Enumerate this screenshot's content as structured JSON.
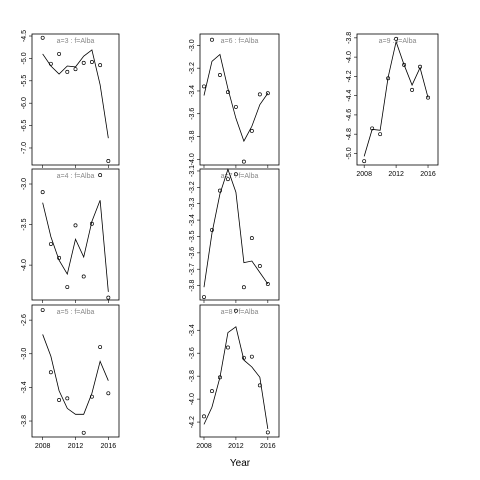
{
  "chart_data": [
    {
      "type": "scatter",
      "title": "a=3 : f=Alba",
      "x": [
        2008,
        2009,
        2010,
        2011,
        2012,
        2013,
        2014,
        2015,
        2016
      ],
      "series": [
        {
          "mode": "markers",
          "color": "#000000",
          "values": [
            -4.54,
            -5.12,
            -4.9,
            -5.3,
            -5.24,
            -5.1,
            -5.08,
            -5.15,
            -7.29
          ]
        },
        {
          "mode": "line",
          "color": "#000000",
          "values": [
            -4.9,
            -5.17,
            -5.35,
            -5.17,
            -5.19,
            -4.95,
            -4.81,
            -5.59,
            -6.78
          ]
        }
      ],
      "xlim": [
        2006.7,
        2017.3
      ],
      "xticks": [
        2008,
        2012,
        2016
      ],
      "x_tick_labels": false,
      "ylim": [
        -7.38,
        -4.455
      ],
      "yticks": [
        -4.5,
        {
          "value": -5,
          "label": "-5.0"
        },
        -5.5,
        {
          "value": -6,
          "label": "-6.0"
        },
        -6.5,
        {
          "value": -7,
          "label": "-7.0"
        }
      ]
    },
    {
      "type": "scatter",
      "title": "a=4 : f=Alba",
      "x": [
        2008,
        2009,
        2010,
        2011,
        2012,
        2013,
        2014,
        2015,
        2016
      ],
      "series": [
        {
          "mode": "markers",
          "color": "#000000",
          "values": [
            -3.1,
            -3.74,
            -3.91,
            -4.27,
            -3.51,
            -4.14,
            -3.49,
            -2.89,
            -4.4
          ]
        },
        {
          "mode": "line",
          "color": "#000000",
          "values": [
            -3.23,
            -3.65,
            -3.94,
            -4.11,
            -3.68,
            -3.9,
            -3.46,
            -3.2,
            -4.33
          ]
        }
      ],
      "xlim": [
        2006.7,
        2017.3
      ],
      "xticks": [
        2008,
        2012,
        2016
      ],
      "x_tick_labels": false,
      "ylim": [
        -4.43,
        -2.815
      ],
      "yticks": [
        {
          "value": -3,
          "label": "-3.0"
        },
        -3.5,
        {
          "value": -4,
          "label": "-4.0"
        }
      ]
    },
    {
      "type": "scatter",
      "title": "a=5 : f=Alba",
      "x": [
        2008,
        2009,
        2010,
        2011,
        2012,
        2013,
        2014,
        2015,
        2016
      ],
      "series": [
        {
          "mode": "markers",
          "color": "#000000",
          "values": [
            -2.48,
            -3.22,
            -3.55,
            -3.53,
            null,
            -3.94,
            -3.51,
            -2.92,
            -3.47
          ]
        },
        {
          "mode": "line",
          "color": "#000000",
          "values": [
            -2.77,
            -3.03,
            -3.44,
            -3.65,
            -3.72,
            -3.72,
            -3.47,
            -3.09,
            -3.32
          ]
        }
      ],
      "xlim": [
        2006.7,
        2017.3
      ],
      "xticks": [
        2008,
        2012,
        2016
      ],
      "x_tick_labels": true,
      "ylim": [
        -3.99,
        -2.42
      ],
      "yticks": [
        -2.6,
        {
          "value": -3,
          "label": "-3.0"
        },
        -3.4,
        -3.8
      ]
    },
    {
      "type": "scatter",
      "title": "a=6 : f=Alba",
      "x": [
        2008,
        2009,
        2010,
        2011,
        2012,
        2013,
        2014,
        2015,
        2016
      ],
      "series": [
        {
          "mode": "markers",
          "color": "#000000",
          "values": [
            -3.36,
            -2.95,
            -3.26,
            -3.41,
            -3.54,
            -4.02,
            -3.75,
            -3.43,
            -3.42
          ]
        },
        {
          "mode": "line",
          "color": "#000000",
          "values": [
            -3.44,
            -3.14,
            -3.08,
            -3.38,
            -3.64,
            -3.84,
            -3.71,
            -3.52,
            -3.42
          ]
        }
      ],
      "xlim": [
        2007.5,
        2017.4
      ],
      "xticks": [
        2008,
        2012,
        2016
      ],
      "x_tick_labels": false,
      "ylim": [
        -4.05,
        -2.9
      ],
      "yticks": [
        {
          "value": -3,
          "label": "-3.0"
        },
        -3.2,
        -3.4,
        -3.6,
        -3.8,
        {
          "value": -4,
          "label": "-4.0"
        }
      ]
    },
    {
      "type": "scatter",
      "title": "a=7 : f=Alba",
      "x": [
        2008,
        2009,
        2010,
        2011,
        2012,
        2013,
        2014,
        2015,
        2016
      ],
      "series": [
        {
          "mode": "markers",
          "color": "#000000",
          "values": [
            -3.87,
            -3.46,
            -3.22,
            -3.15,
            -3.12,
            -3.81,
            -3.51,
            -3.68,
            -3.79
          ]
        },
        {
          "mode": "line",
          "color": "#000000",
          "values": [
            -3.81,
            -3.48,
            -3.24,
            -3.09,
            -3.23,
            -3.66,
            -3.65,
            -3.72,
            -3.79
          ]
        }
      ],
      "xlim": [
        2007.5,
        2017.4
      ],
      "xticks": [
        2008,
        2012,
        2016
      ],
      "x_tick_labels": false,
      "ylim": [
        -3.888,
        -3.088
      ],
      "yticks": [
        -3.1,
        -3.2,
        -3.3,
        -3.4,
        -3.5,
        -3.6,
        -3.7,
        -3.8
      ]
    },
    {
      "type": "scatter",
      "title": "a=8 : f=Alba",
      "x": [
        2008,
        2009,
        2010,
        2011,
        2012,
        2013,
        2014,
        2015,
        2016
      ],
      "series": [
        {
          "mode": "markers",
          "color": "#000000",
          "values": [
            -4.15,
            -3.93,
            -3.81,
            -3.55,
            -3.23,
            -3.64,
            -3.63,
            -3.88,
            -4.29
          ]
        },
        {
          "mode": "line",
          "color": "#000000",
          "values": [
            -4.22,
            -4.07,
            -3.81,
            -3.42,
            -3.37,
            -3.66,
            -3.72,
            -3.81,
            -4.26
          ]
        }
      ],
      "xlim": [
        2007.5,
        2017.4
      ],
      "xticks": [
        2008,
        2012,
        2016
      ],
      "x_tick_labels": true,
      "ylim": [
        -4.33,
        -3.18
      ],
      "yticks": [
        -3.4,
        -3.6,
        -3.8,
        {
          "value": -4,
          "label": "-4.0"
        },
        -4.2
      ]
    },
    {
      "type": "scatter",
      "title": "a=9 : f=Alba",
      "x": [
        2008,
        2009,
        2010,
        2011,
        2012,
        2013,
        2014,
        2015,
        2016
      ],
      "series": [
        {
          "mode": "markers",
          "color": "#000000",
          "values": [
            -5.08,
            -4.74,
            -4.8,
            -4.22,
            -3.81,
            -4.08,
            -4.34,
            -4.1,
            -4.42
          ]
        },
        {
          "mode": "line",
          "color": "#000000",
          "values": [
            -5.03,
            -4.75,
            -4.76,
            -4.21,
            -3.84,
            -4.08,
            -4.29,
            -4.11,
            -4.42
          ]
        }
      ],
      "xlim": [
        2007.1,
        2017.25
      ],
      "xticks": [
        2008,
        2012,
        2016
      ],
      "x_tick_labels": true,
      "ylim": [
        -5.12,
        -3.76
      ],
      "yticks": [
        -3.8,
        {
          "value": -4,
          "label": "-4.0"
        },
        -4.2,
        -4.4,
        -4.6,
        -4.8,
        {
          "value": -5,
          "label": "-5.0"
        }
      ]
    }
  ],
  "xlabel": "Year"
}
